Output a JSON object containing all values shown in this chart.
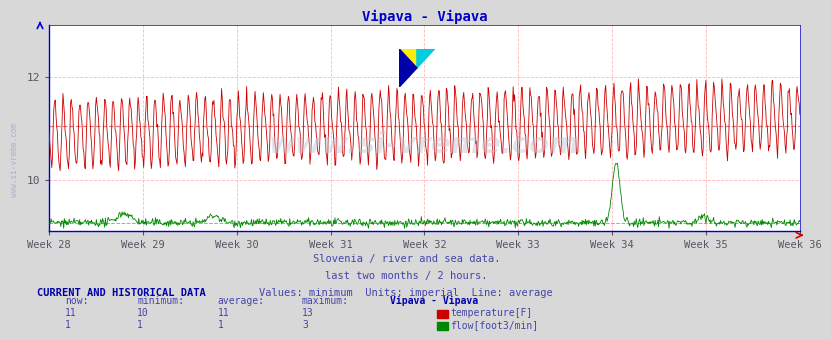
{
  "title": "Vipava - Vipava",
  "title_color": "#0000cc",
  "bg_color": "#d8d8d8",
  "plot_bg_color": "#ffffff",
  "grid_color": "#ffb0b0",
  "x_label_weeks": [
    "Week 28",
    "Week 29",
    "Week 30",
    "Week 31",
    "Week 32",
    "Week 33",
    "Week 34",
    "Week 35",
    "Week 36"
  ],
  "y_min": 9.0,
  "y_max": 13.0,
  "y_ticks": [
    10,
    12
  ],
  "temp_color": "#cc0000",
  "flow_color": "#008800",
  "avg_temp_color": "#dd6666",
  "avg_flow_color": "#44aa44",
  "temp_min": 10,
  "temp_avg": 11,
  "temp_max": 13,
  "temp_now": 11,
  "flow_min": 1,
  "flow_avg": 1,
  "flow_max": 3,
  "flow_now": 1,
  "n_points": 1080,
  "watermark_text": "www.si-vreme.com",
  "subtitle1": "Slovenia / river and sea data.",
  "subtitle2": "last two months / 2 hours.",
  "subtitle3": "Values: minimum  Units: imperial  Line: average",
  "subtitle_color": "#4444aa",
  "table_header": "CURRENT AND HISTORICAL DATA",
  "table_color": "#0000aa",
  "left_label": "www.si-vreme.com",
  "left_label_color": "#aaaacc",
  "spine_color": "#0000cc",
  "tick_color": "#555566"
}
